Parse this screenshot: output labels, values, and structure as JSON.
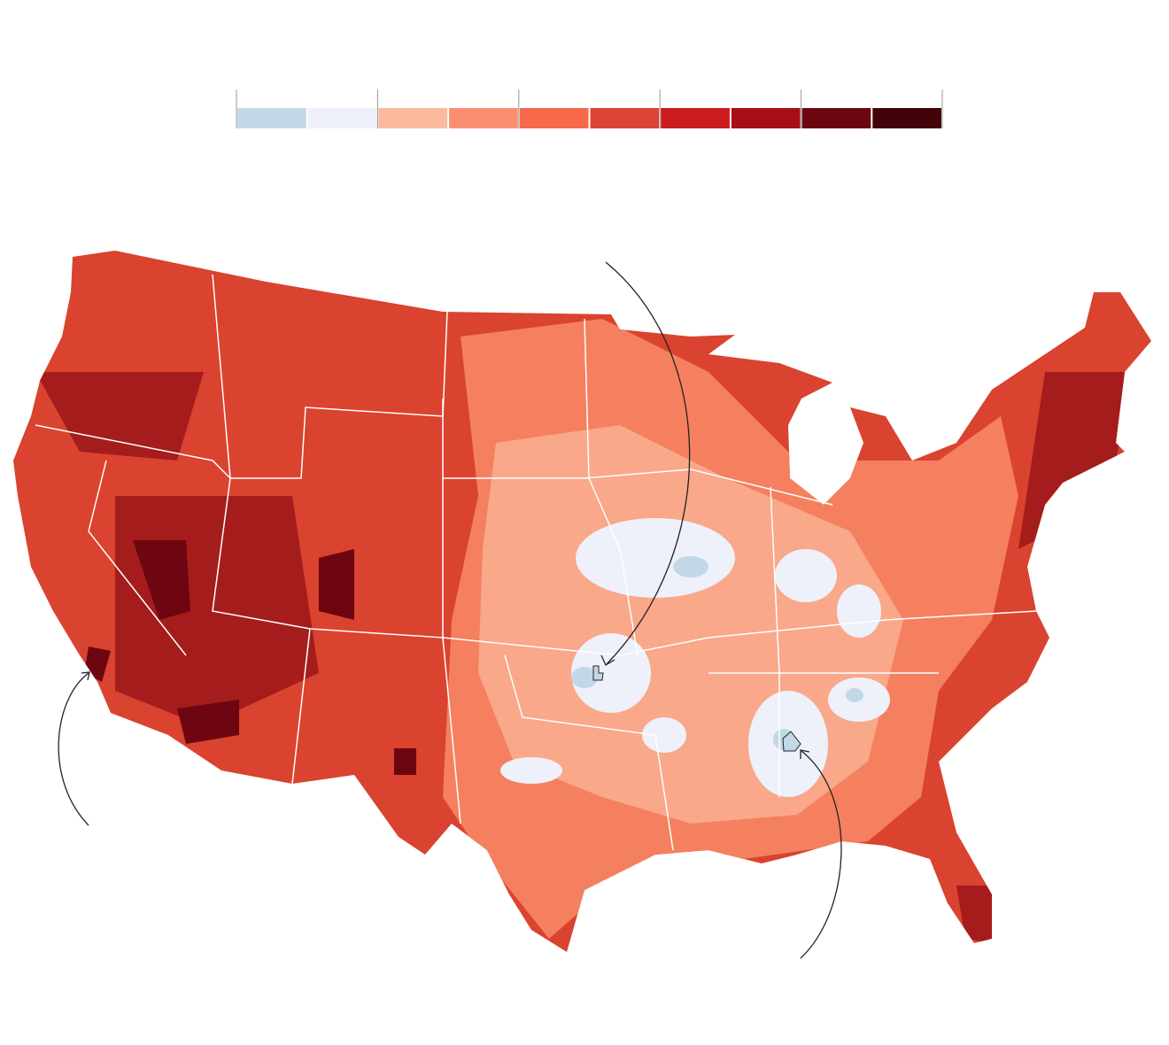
{
  "legend": {
    "colors": [
      "#c2d8e6",
      "#eef1fa",
      "#fbb99d",
      "#fb8e6e",
      "#f8694b",
      "#de4433",
      "#cc1b1e",
      "#a50f15",
      "#6d0610",
      "#43030a"
    ]
  }
}
